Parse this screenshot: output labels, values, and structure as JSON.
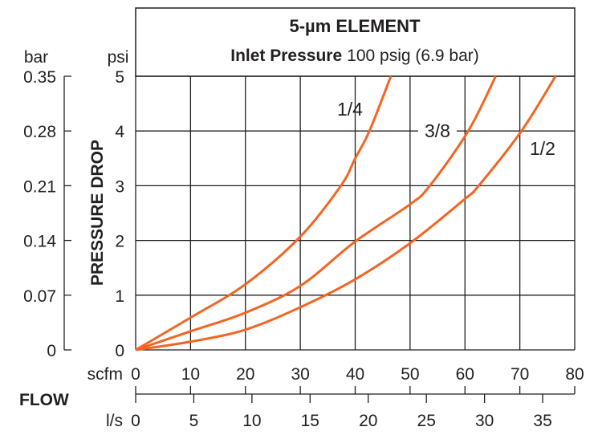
{
  "chart_data": {
    "type": "line",
    "title": "5-µm ELEMENT",
    "subtitle_bold": "Inlet Pressure",
    "subtitle_rest": "100 psig (6.9 bar)",
    "xlabel": "FLOW",
    "ylabel": "PRESSURE DROP",
    "x_unit_primary": "scfm",
    "x_unit_secondary": "l/s",
    "y_unit_primary": "psi",
    "y_unit_secondary": "bar",
    "xlim": [
      0,
      80
    ],
    "ylim": [
      0,
      5
    ],
    "x_ticks": [
      0,
      10,
      20,
      30,
      40,
      50,
      60,
      70,
      80
    ],
    "x_ticks_secondary": [
      0,
      5,
      10,
      15,
      20,
      25,
      30,
      35
    ],
    "y_ticks": [
      0,
      1,
      2,
      3,
      4,
      5
    ],
    "y_ticks_secondary": [
      "0",
      "0.07",
      "0.14",
      "0.21",
      "0.28",
      "0.35"
    ],
    "grid": true,
    "line_color": "#f26522",
    "series": [
      {
        "name": "1/4",
        "x": [
          0,
          10,
          20,
          30,
          37.4,
          40,
          42.6,
          46.5
        ],
        "y": [
          0,
          0.59,
          1.2,
          2.07,
          3,
          3.5,
          4,
          5
        ]
      },
      {
        "name": "3/8",
        "x": [
          0,
          10,
          20,
          30,
          40,
          50,
          53.6,
          60.6,
          65.6
        ],
        "y": [
          0,
          0.34,
          0.68,
          1.17,
          1.98,
          2.66,
          3,
          4,
          5
        ]
      },
      {
        "name": "1/2",
        "x": [
          0,
          10,
          20,
          30,
          40,
          50,
          60,
          62.5,
          70.3,
          76.5
        ],
        "y": [
          0,
          0.15,
          0.37,
          0.78,
          1.29,
          1.95,
          2.76,
          3,
          4,
          5
        ]
      }
    ]
  }
}
